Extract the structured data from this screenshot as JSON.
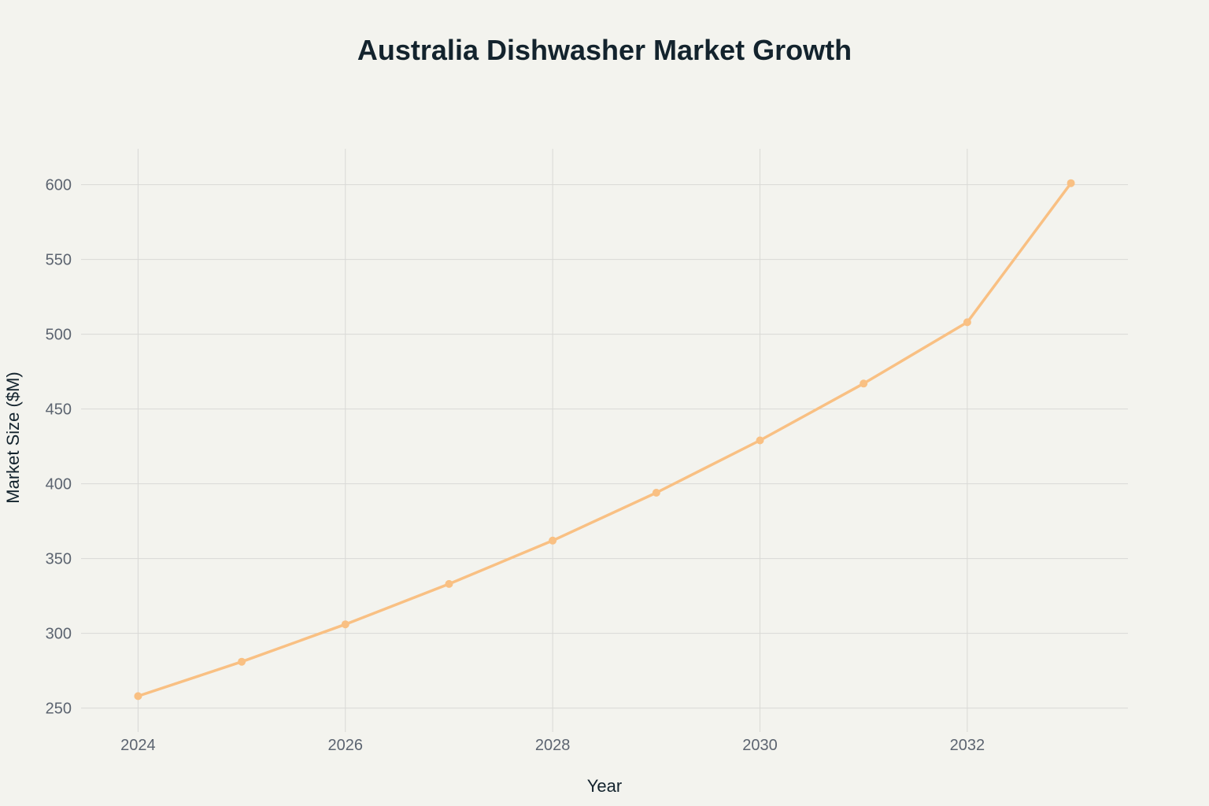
{
  "chart_data": {
    "type": "line",
    "title": "Australia Dishwasher Market Growth",
    "xlabel": "Year",
    "ylabel": "Market Size ($M)",
    "x": [
      2024,
      2025,
      2026,
      2027,
      2028,
      2029,
      2030,
      2031,
      2032,
      2033
    ],
    "series": [
      {
        "name": "Market Size",
        "values": [
          258,
          281,
          306,
          333,
          362,
          394,
          429,
          467,
          508,
          601
        ],
        "color": "#f9c083"
      }
    ],
    "xlim": [
      2023.45,
      2033.55
    ],
    "ylim": [
      234,
      624
    ],
    "x_ticks": [
      2024,
      2026,
      2028,
      2030,
      2032
    ],
    "y_ticks": [
      250,
      300,
      350,
      400,
      450,
      500,
      550,
      600
    ],
    "grid": true,
    "legend": "none",
    "background": "#f3f3ee",
    "grid_color": "#d9d9d6"
  }
}
